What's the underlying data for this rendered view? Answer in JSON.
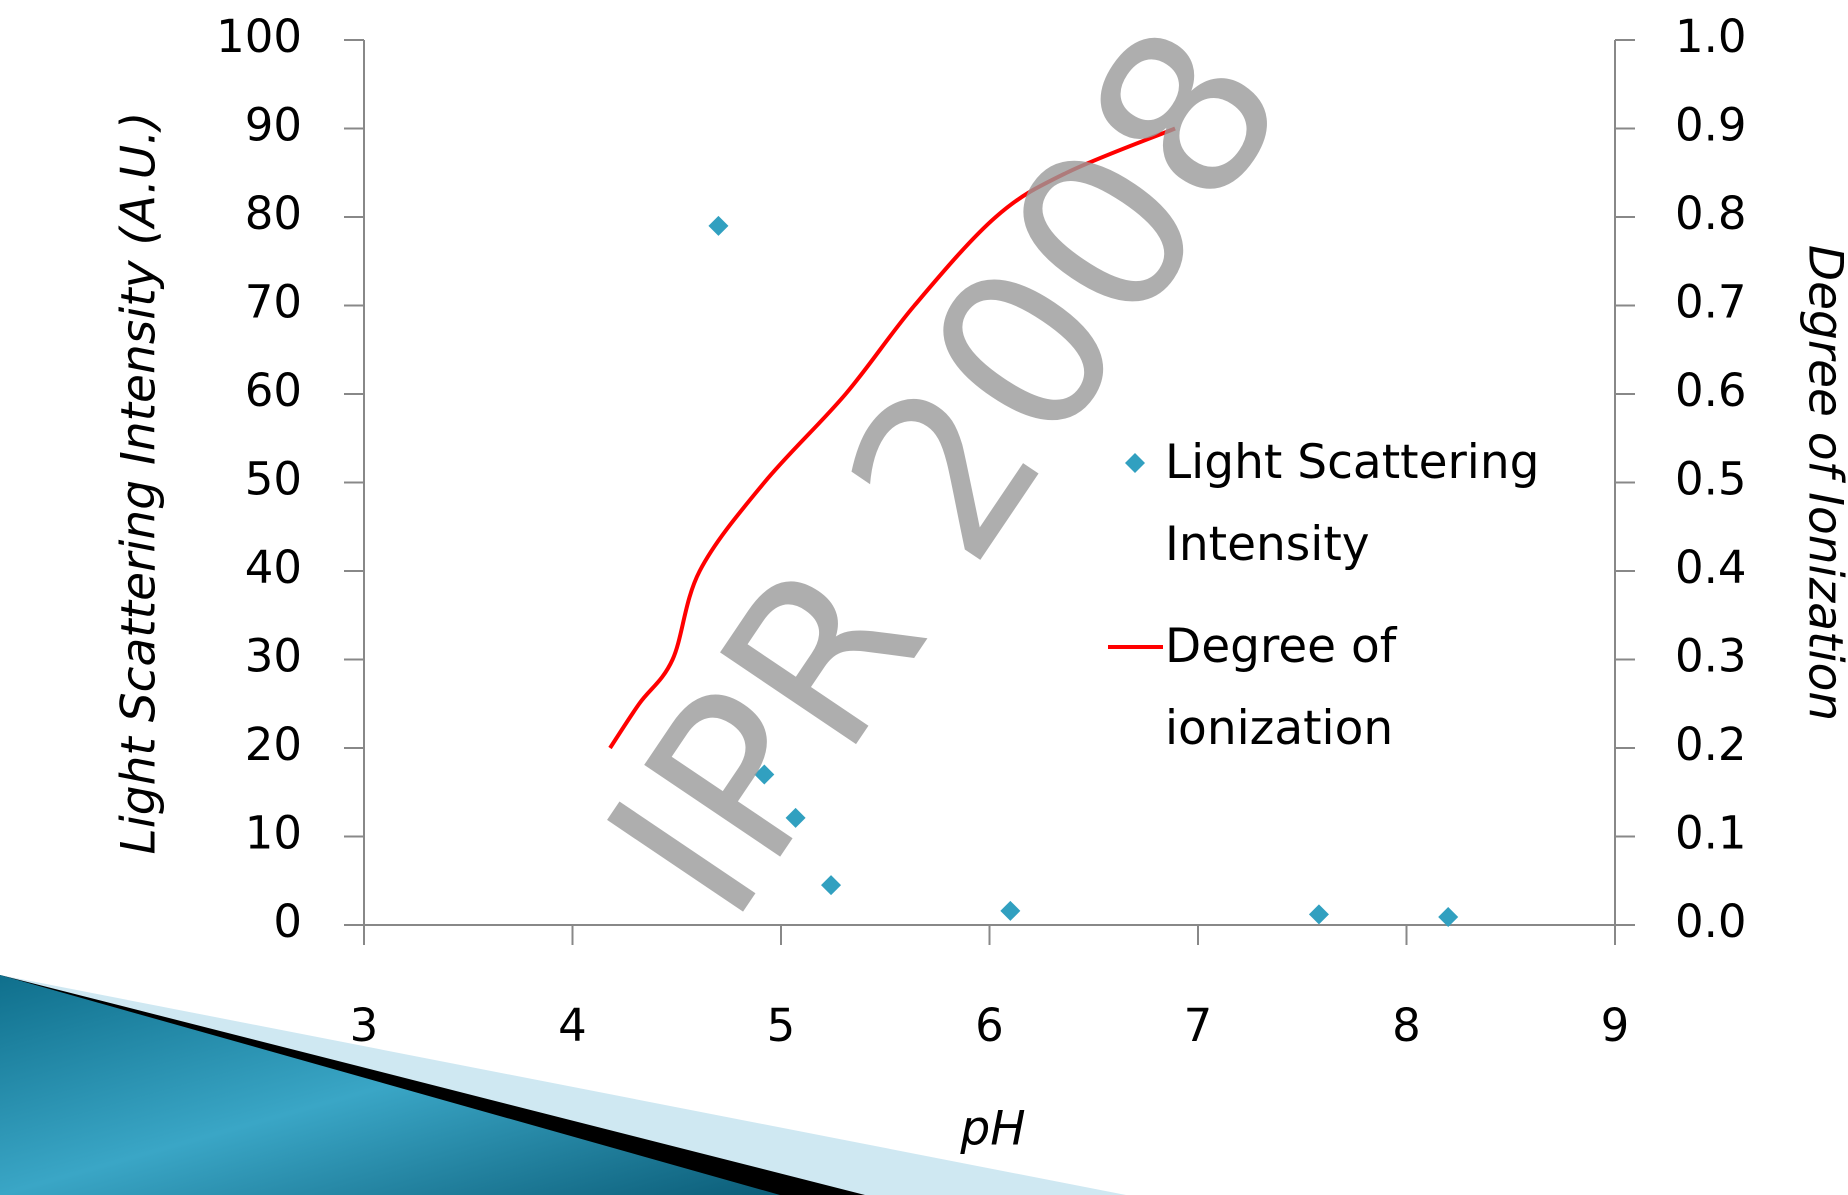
{
  "chart_data": {
    "type": "scatter",
    "watermark": "IPR 2008",
    "x_label": "pH",
    "y_label": "Light Scattering Intensity (A.U.)",
    "y2_label": "Degree of Ionization",
    "xlim": [
      3,
      9
    ],
    "xticks": [
      3,
      4,
      5,
      6,
      7,
      8,
      9
    ],
    "ylim": [
      0,
      100
    ],
    "yticks": [
      0,
      10,
      20,
      30,
      40,
      50,
      60,
      70,
      80,
      90,
      100
    ],
    "y2lim": [
      0,
      1
    ],
    "y2ticks": [
      {
        "value": 0,
        "label": "0.0"
      },
      0.1,
      0.2,
      0.3,
      0.4,
      0.5,
      0.6,
      0.7,
      0.8,
      0.9,
      {
        "value": 1,
        "label": "1.0"
      }
    ],
    "grid": false,
    "legend": "right",
    "series": [
      {
        "name": "Light Scattering Intensity",
        "type": "scatter",
        "color": "#31a0c0",
        "x": [
          4.7,
          4.92,
          5.07,
          5.24,
          6.1,
          7.58,
          8.2
        ],
        "values": [
          79,
          17,
          12.1,
          4.5,
          1.6,
          1.2,
          0.9
        ]
      },
      {
        "name": "Degree of ionization",
        "type": "line",
        "axis": "y2",
        "color": "#ff0000",
        "x": [
          4.18,
          4.32,
          4.48,
          4.61,
          4.92,
          5.31,
          5.64,
          6.03,
          6.37,
          6.89
        ],
        "values": [
          0.2,
          0.25,
          0.3,
          0.4,
          0.5,
          0.6,
          0.7,
          0.8,
          0.85,
          0.9
        ]
      }
    ]
  }
}
